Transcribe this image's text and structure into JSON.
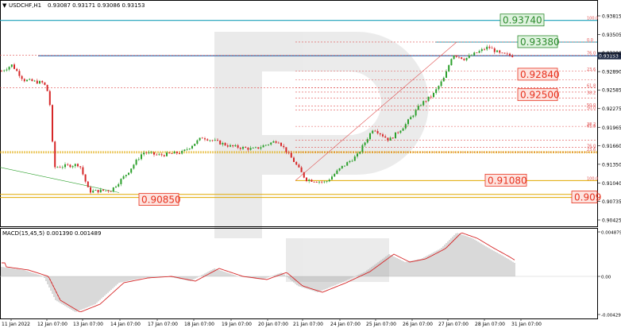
{
  "header": {
    "symbol": "USDCHF,H1",
    "ohlc": "0.93087 0.93171 0.93086 0.93153"
  },
  "price_axis": {
    "ticks": [
      "0.93815",
      "0.93505",
      "0.93200",
      "0.92890",
      "0.92585",
      "0.92275",
      "0.91965",
      "0.91660",
      "0.91350",
      "0.91040",
      "0.90735",
      "0.90425"
    ],
    "current_price": "0.93153"
  },
  "macd": {
    "label": "MACD(15,45,5) 0.001390 0.001489",
    "ticks": [
      "0.004879",
      "0.00",
      "-0.004292"
    ]
  },
  "time_axis": {
    "labels": [
      "11 Jan 2022",
      "12 Jan 07:00",
      "13 Jan 07:00",
      "14 Jan 07:00",
      "17 Jan 07:00",
      "18 Jan 07:00",
      "19 Jan 07:00",
      "20 Jan 07:00",
      "21 Jan 07:00",
      "24 Jan 07:00",
      "25 Jan 07:00",
      "26 Jan 07:00",
      "27 Jan 07:00",
      "28 Jan 07:00",
      "31 Jan 07:00"
    ]
  },
  "level_boxes": [
    {
      "text": "0.93740",
      "color": "#2e8b2e",
      "bg": "#dff3df"
    },
    {
      "text": "0.93380",
      "color": "#2e8b2e",
      "bg": "#dff3df"
    },
    {
      "text": "0.92840",
      "color": "#e8321e",
      "bg": "#fde3df"
    },
    {
      "text": "0.92500",
      "color": "#e8321e",
      "bg": "#fde3df"
    },
    {
      "text": "0.91080",
      "color": "#e8321e",
      "bg": "#fde3df"
    },
    {
      "text": "0.909",
      "color": "#e8321e",
      "bg": "#fde3df"
    },
    {
      "text": "0.90850",
      "color": "#e8321e",
      "bg": "#fde3df"
    }
  ],
  "fib_labels": {
    "upper": [
      "100.0",
      "0.0",
      "76.0",
      "23.6",
      "61.8",
      "38.2",
      "50.0",
      "50.0",
      "38.2",
      "61.8",
      "76.0",
      "23.6",
      "100.0"
    ]
  },
  "colors": {
    "bull": "#2ca02c",
    "bear": "#d62728",
    "fib_red": "#e05050",
    "gold": "#e0a800",
    "blue_line": "#1f5fa8",
    "teal_line": "#1aa0b8",
    "histogram": "#a0a0a0",
    "signal": "#d62728"
  }
}
